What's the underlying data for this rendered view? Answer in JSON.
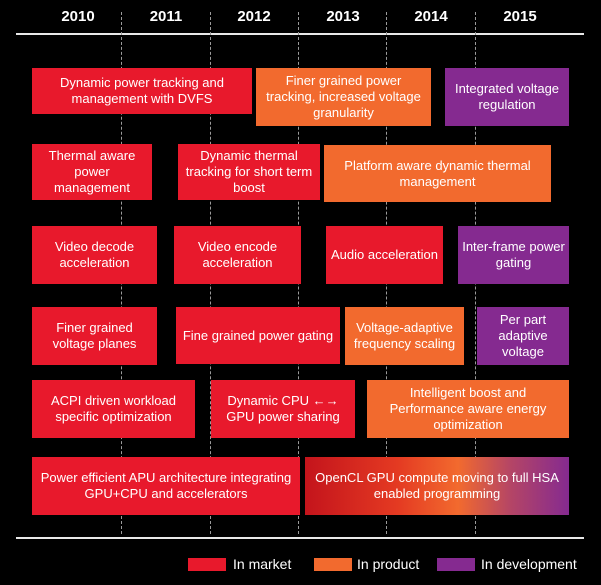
{
  "years": [
    "2010",
    "2011",
    "2012",
    "2013",
    "2014",
    "2015"
  ],
  "boxes": [
    {
      "text": "Dynamic power tracking and management with DVFS",
      "status": "in-market"
    },
    {
      "text": "Finer grained power tracking, increased voltage granularity",
      "status": "in-product"
    },
    {
      "text": "Integrated voltage regulation",
      "status": "in-development"
    },
    {
      "text": "Thermal  aware power management",
      "status": "in-market"
    },
    {
      "text": "Dynamic thermal tracking for short term boost",
      "status": "in-market"
    },
    {
      "text": "Platform aware dynamic thermal management",
      "status": "in-product"
    },
    {
      "text": "Video decode acceleration",
      "status": "in-market"
    },
    {
      "text": "Video encode acceleration",
      "status": "in-market"
    },
    {
      "text": "Audio acceleration",
      "status": "in-market"
    },
    {
      "text": "Inter-frame power gating",
      "status": "in-development"
    },
    {
      "text": "Finer grained voltage planes",
      "status": "in-market"
    },
    {
      "text": "Fine grained power gating",
      "status": "in-market"
    },
    {
      "text": "Voltage-adaptive frequency scaling",
      "status": "in-product"
    },
    {
      "text": "Per part adaptive voltage",
      "status": "in-development"
    },
    {
      "text": "ACPI driven workload specific optimization",
      "status": "in-market"
    },
    {
      "text": "Dynamic CPU ←→ GPU power sharing",
      "status": "in-market"
    },
    {
      "text": "Intelligent boost  and Performance aware energy optimization",
      "status": "in-product"
    },
    {
      "text": "Power efficient APU architecture integrating GPU+CPU and accelerators",
      "status": "in-market"
    },
    {
      "text": "OpenCL GPU compute moving to full HSA enabled programming",
      "status": "in-market to in-development"
    }
  ],
  "legend": [
    {
      "label": "In market",
      "color": "#e8192c"
    },
    {
      "label": "In product",
      "color": "#f26a2e"
    },
    {
      "label": "In development",
      "color": "#852a90"
    }
  ]
}
